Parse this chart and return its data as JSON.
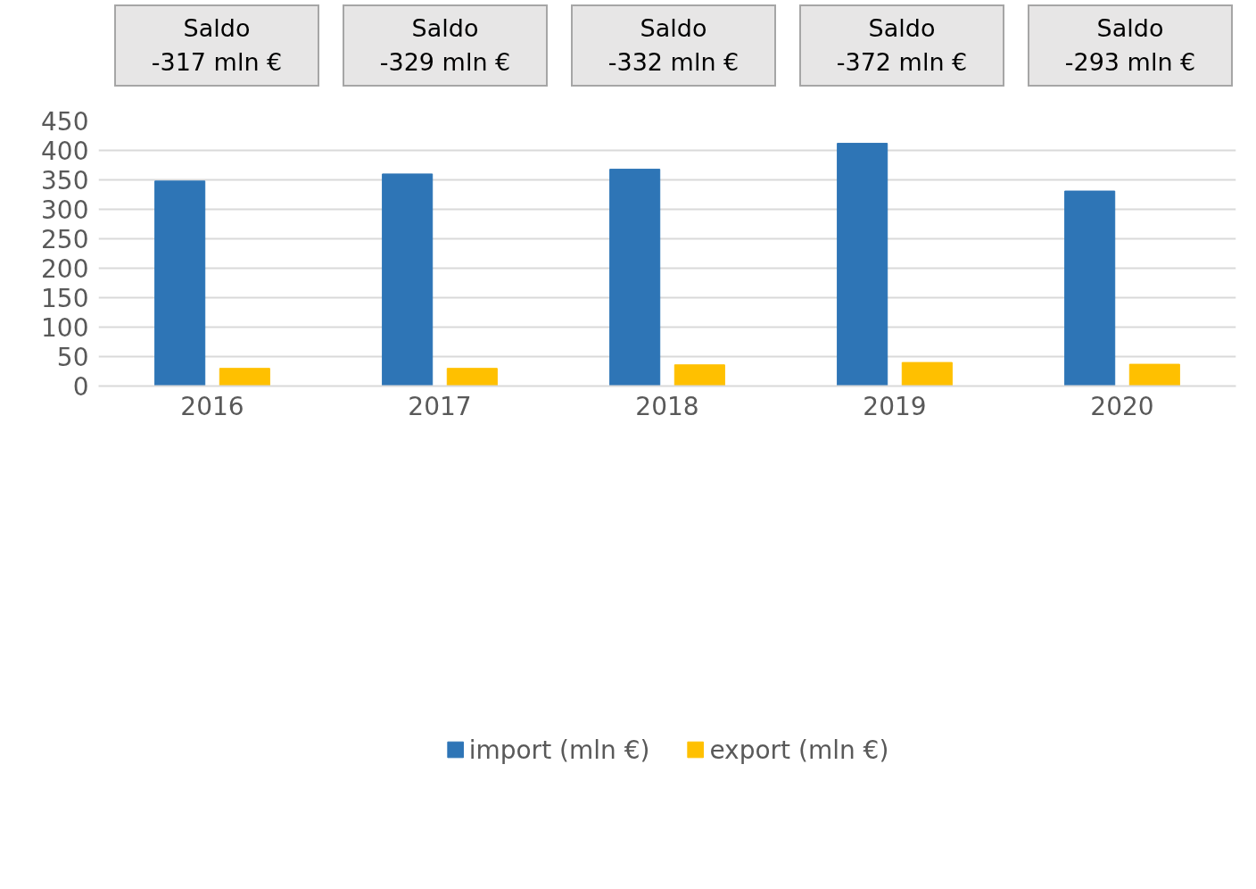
{
  "chart_data": {
    "type": "bar",
    "categories": [
      "2016",
      "2017",
      "2018",
      "2019",
      "2020"
    ],
    "series": [
      {
        "name": "import (mln €)",
        "color": "#2e75b6",
        "values": [
          348,
          360,
          368,
          412,
          331
        ]
      },
      {
        "name": "export (mln €)",
        "color": "#ffc000",
        "values": [
          30,
          30,
          36,
          40,
          37
        ]
      }
    ],
    "ylim": [
      0,
      450
    ],
    "yticks": [
      0,
      50,
      100,
      150,
      200,
      250,
      300,
      350,
      400,
      450
    ],
    "grid": "y",
    "legend": "bottom",
    "annotations": [
      "Saldo\n-317 mln €",
      "Saldo\n-329 mln €",
      "Saldo\n-332 mln €",
      "Saldo\n-372 mln €",
      "Saldo\n-293 mln €"
    ]
  }
}
